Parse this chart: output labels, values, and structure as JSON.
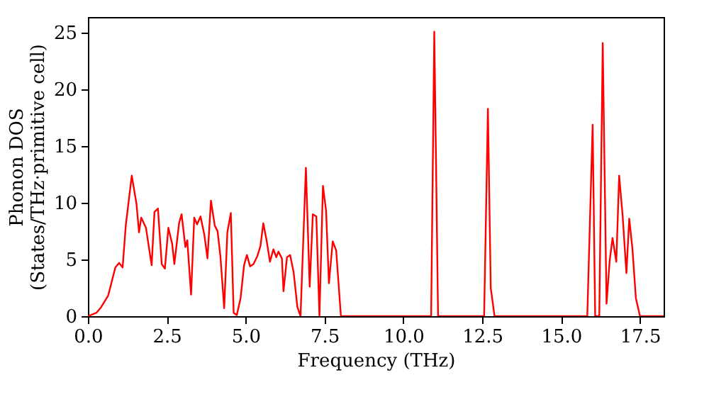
{
  "chart_data": {
    "type": "line",
    "xlabel": "Frequency (THz)",
    "ylabel": "Phonon DOS\n(States/THz·primitive cell)",
    "xlim": [
      0,
      18.25
    ],
    "ylim": [
      0,
      26.4
    ],
    "xticks": [
      {
        "value": 0,
        "label": "0.0"
      },
      {
        "value": 2.5,
        "label": "2.5"
      },
      {
        "value": 5,
        "label": "5.0"
      },
      {
        "value": 7.5,
        "label": "7.5"
      },
      {
        "value": 10,
        "label": "10.0"
      },
      {
        "value": 12.5,
        "label": "12.5"
      },
      {
        "value": 15,
        "label": "15.0"
      },
      {
        "value": 17.5,
        "label": "17.5"
      }
    ],
    "yticks": [
      0,
      5,
      10,
      15,
      20,
      25
    ],
    "grid": false,
    "marker": "none",
    "line_style": "solid",
    "series": [
      {
        "color": "#ff0000",
        "x": [
          0,
          0.27,
          0.42,
          0.64,
          0.87,
          0.99,
          1.1,
          1.2,
          1.39,
          1.54,
          1.62,
          1.69,
          1.84,
          2.02,
          2.11,
          2.22,
          2.34,
          2.44,
          2.55,
          2.67,
          2.74,
          2.89,
          2.97,
          3.09,
          3.15,
          3.27,
          3.37,
          3.46,
          3.57,
          3.69,
          3.79,
          3.9,
          4.02,
          4.11,
          4.2,
          4.32,
          4.42,
          4.53,
          4.62,
          4.72,
          4.84,
          4.95,
          5.04,
          5.14,
          5.25,
          5.37,
          5.47,
          5.56,
          5.67,
          5.77,
          5.88,
          5.97,
          6.04,
          6.15,
          6.2,
          6.31,
          6.41,
          6.52,
          6.64,
          6.74,
          6.91,
          7.03,
          7.13,
          7.24,
          7.34,
          7.45,
          7.55,
          7.64,
          7.76,
          7.87,
          8.02,
          10.88,
          10.98,
          11.1,
          12.56,
          12.68,
          12.77,
          12.89,
          15.83,
          16.0,
          16.08,
          16.21,
          16.32,
          16.44,
          16.54,
          16.63,
          16.75,
          16.84,
          16.95,
          17.07,
          17.16,
          17.26,
          17.37,
          17.5,
          18.25
        ],
        "values": [
          0,
          0.3,
          0.8,
          1.8,
          4.3,
          4.7,
          4.3,
          8.0,
          12.4,
          9.9,
          7.4,
          8.7,
          7.8,
          4.5,
          9.2,
          9.5,
          4.6,
          4.2,
          7.8,
          6.4,
          4.6,
          8.2,
          9.0,
          6.1,
          6.7,
          1.9,
          8.7,
          8.1,
          8.8,
          7.2,
          5.1,
          10.2,
          8.0,
          7.5,
          5.3,
          0.7,
          7.4,
          9.1,
          0.3,
          0.1,
          1.6,
          4.5,
          5.4,
          4.4,
          4.6,
          5.3,
          6.2,
          8.2,
          6.6,
          4.8,
          5.9,
          5.2,
          5.7,
          5.1,
          2.2,
          5.2,
          5.4,
          3.9,
          0.8,
          0,
          13.1,
          2.6,
          9.0,
          8.8,
          0,
          11.5,
          9.3,
          2.9,
          6.6,
          5.8,
          0,
          0,
          25.1,
          0,
          0,
          18.3,
          2.5,
          0,
          0,
          16.9,
          0,
          0,
          24.1,
          1.1,
          4.9,
          6.9,
          4.8,
          12.4,
          8.9,
          3.8,
          8.6,
          6.0,
          1.6,
          0,
          0
        ]
      }
    ]
  }
}
